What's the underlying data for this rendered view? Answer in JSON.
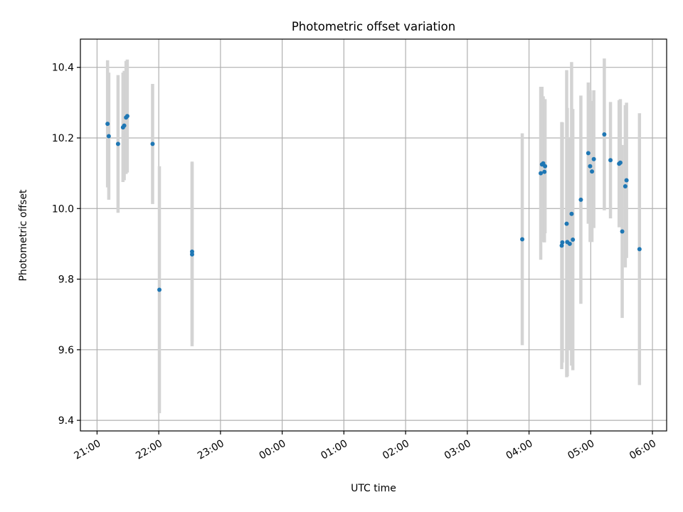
{
  "chart_data": {
    "type": "scatter",
    "title": "Photometric offset variation",
    "xlabel": "UTC time",
    "ylabel": "Photometric offset",
    "x_ticks": [
      "21:00",
      "22:00",
      "23:00",
      "00:00",
      "01:00",
      "02:00",
      "03:00",
      "04:00",
      "05:00",
      "06:00"
    ],
    "x_tick_hours": [
      21,
      22,
      23,
      24,
      25,
      26,
      27,
      28,
      29,
      30
    ],
    "xlim": [
      20.73,
      30.23
    ],
    "y_ticks": [
      "9.4",
      "9.6",
      "9.8",
      "10.0",
      "10.2",
      "10.4"
    ],
    "y_tick_values": [
      9.4,
      9.6,
      9.8,
      10.0,
      10.2,
      10.4
    ],
    "ylim": [
      9.37,
      10.48
    ],
    "grid": true,
    "colors": {
      "point": "#1f77b4",
      "errorbar": "#d3d3d3",
      "grid": "#b0b0b0"
    },
    "points": [
      {
        "t": 21.17,
        "y": 10.24,
        "err": 0.18
      },
      {
        "t": 21.19,
        "y": 10.205,
        "err": 0.18
      },
      {
        "t": 21.34,
        "y": 10.183,
        "err": 0.195
      },
      {
        "t": 21.42,
        "y": 10.23,
        "err": 0.155
      },
      {
        "t": 21.44,
        "y": 10.235,
        "err": 0.155
      },
      {
        "t": 21.47,
        "y": 10.258,
        "err": 0.16
      },
      {
        "t": 21.49,
        "y": 10.262,
        "err": 0.16
      },
      {
        "t": 21.9,
        "y": 10.183,
        "err": 0.17
      },
      {
        "t": 22.01,
        "y": 9.77,
        "err": 0.35
      },
      {
        "t": 22.54,
        "y": 9.87,
        "err": 0.26
      },
      {
        "t": 22.54,
        "y": 9.878,
        "err": 0.255
      },
      {
        "t": 27.89,
        "y": 9.913,
        "err": 0.3
      },
      {
        "t": 28.19,
        "y": 10.1,
        "err": 0.245
      },
      {
        "t": 28.21,
        "y": 10.125,
        "err": 0.22
      },
      {
        "t": 28.23,
        "y": 10.128,
        "err": 0.19
      },
      {
        "t": 28.25,
        "y": 10.104,
        "err": 0.2
      },
      {
        "t": 28.26,
        "y": 10.12,
        "err": 0.19
      },
      {
        "t": 28.53,
        "y": 9.895,
        "err": 0.35
      },
      {
        "t": 28.54,
        "y": 9.904,
        "err": 0.34
      },
      {
        "t": 28.61,
        "y": 9.957,
        "err": 0.435
      },
      {
        "t": 28.62,
        "y": 9.905,
        "err": 0.38
      },
      {
        "t": 28.66,
        "y": 9.9,
        "err": 0.3
      },
      {
        "t": 28.69,
        "y": 9.985,
        "err": 0.43
      },
      {
        "t": 28.71,
        "y": 9.912,
        "err": 0.37
      },
      {
        "t": 28.84,
        "y": 10.025,
        "err": 0.295
      },
      {
        "t": 28.96,
        "y": 10.157,
        "err": 0.2
      },
      {
        "t": 28.99,
        "y": 10.12,
        "err": 0.215
      },
      {
        "t": 29.02,
        "y": 10.105,
        "err": 0.2
      },
      {
        "t": 29.05,
        "y": 10.14,
        "err": 0.195
      },
      {
        "t": 29.22,
        "y": 10.21,
        "err": 0.215
      },
      {
        "t": 29.32,
        "y": 10.137,
        "err": 0.165
      },
      {
        "t": 29.46,
        "y": 10.127,
        "err": 0.18
      },
      {
        "t": 29.48,
        "y": 10.13,
        "err": 0.18
      },
      {
        "t": 29.51,
        "y": 9.935,
        "err": 0.245
      },
      {
        "t": 29.56,
        "y": 10.063,
        "err": 0.23
      },
      {
        "t": 29.58,
        "y": 10.08,
        "err": 0.22
      },
      {
        "t": 29.79,
        "y": 9.885,
        "err": 0.385
      }
    ]
  }
}
